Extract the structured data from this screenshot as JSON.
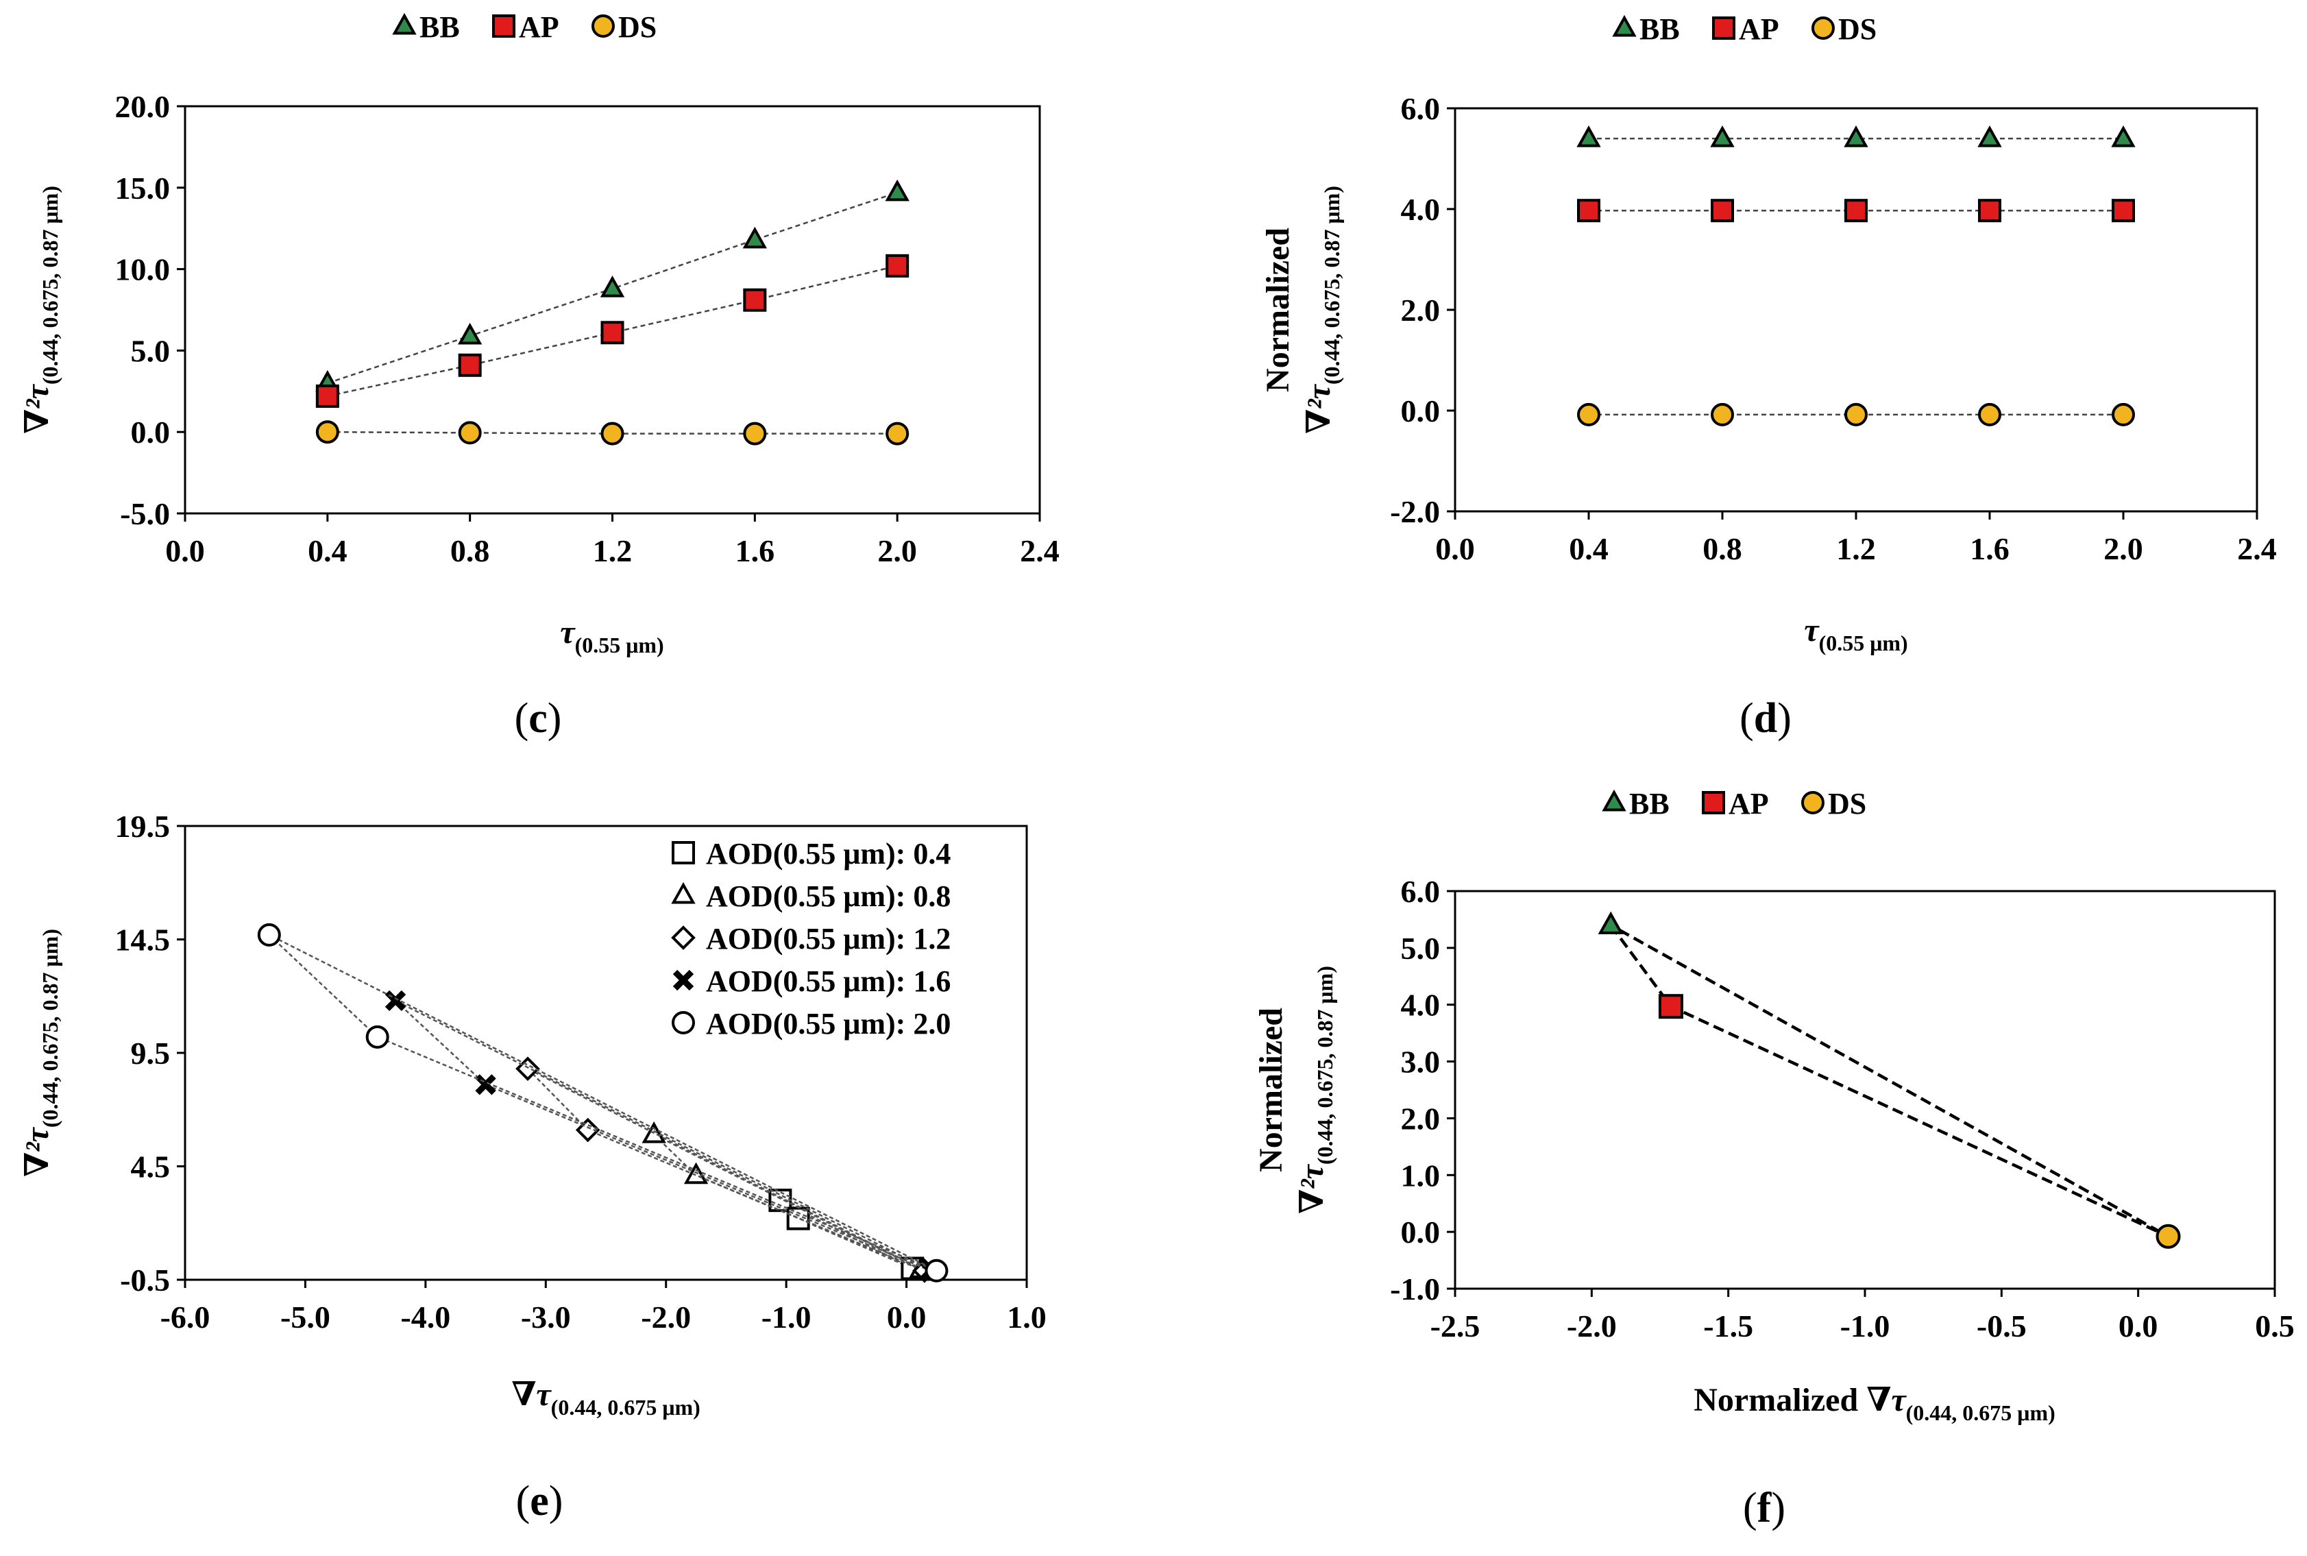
{
  "colors": {
    "BB": "#2e8b4a",
    "AP": "#e01b1b",
    "DS": "#f2b41e"
  },
  "chart_data": [
    {
      "id": "c",
      "type": "scatter",
      "panel_label": "c",
      "title": "",
      "legend": {
        "items": [
          "BB",
          "AP",
          "DS"
        ]
      },
      "ylabel": {
        "main": "∇²τ",
        "sub": "(0.44, 0.675, 0.87 μm)"
      },
      "xlabel": {
        "main": "τ",
        "sub": "(0.55 μm)"
      },
      "xlim": [
        0.0,
        2.4
      ],
      "ylim": [
        -5.0,
        20.0
      ],
      "xticks": [
        "0.0",
        "0.4",
        "0.8",
        "1.2",
        "1.6",
        "2.0",
        "2.4"
      ],
      "yticks": [
        "-5.0",
        "0.0",
        "5.0",
        "10.0",
        "15.0",
        "20.0"
      ],
      "x": [
        0.4,
        0.8,
        1.2,
        1.6,
        2.0
      ],
      "series": [
        {
          "name": "BB",
          "values": [
            3.0,
            5.9,
            8.8,
            11.8,
            14.7
          ]
        },
        {
          "name": "AP",
          "values": [
            2.2,
            4.1,
            6.1,
            8.1,
            10.2
          ]
        },
        {
          "name": "DS",
          "values": [
            0.0,
            -0.05,
            -0.1,
            -0.1,
            -0.1
          ]
        }
      ]
    },
    {
      "id": "d",
      "type": "scatter",
      "panel_label": "d",
      "title": "",
      "legend": {
        "items": [
          "BB",
          "AP",
          "DS"
        ]
      },
      "ylabel": {
        "pre": "Normalized",
        "main": "∇²τ",
        "sub": "(0.44, 0.675, 0.87 μm)"
      },
      "xlabel": {
        "main": "τ",
        "sub": "(0.55 μm)"
      },
      "xlim": [
        0.0,
        2.4
      ],
      "ylim": [
        -2.0,
        6.0
      ],
      "xticks": [
        "0.0",
        "0.4",
        "0.8",
        "1.2",
        "1.6",
        "2.0",
        "2.4"
      ],
      "yticks": [
        "-2.0",
        "0.0",
        "2.0",
        "4.0",
        "6.0"
      ],
      "x": [
        0.4,
        0.8,
        1.2,
        1.6,
        2.0
      ],
      "series": [
        {
          "name": "BB",
          "values": [
            5.4,
            5.4,
            5.4,
            5.4,
            5.4
          ]
        },
        {
          "name": "AP",
          "values": [
            3.97,
            3.97,
            3.97,
            3.97,
            3.97
          ]
        },
        {
          "name": "DS",
          "values": [
            -0.08,
            -0.08,
            -0.08,
            -0.08,
            -0.08
          ]
        }
      ]
    },
    {
      "id": "e",
      "type": "scatter",
      "panel_label": "e",
      "title": "",
      "legend": {
        "items": [
          "AOD(0.55 μm): 0.4",
          "AOD(0.55 μm): 0.8",
          "AOD(0.55 μm): 1.2",
          "AOD(0.55 μm): 1.6",
          "AOD(0.55 μm): 2.0"
        ]
      },
      "ylabel": {
        "main": "∇²τ",
        "sub": "(0.44, 0.675, 0.87 μm)"
      },
      "xlabel": {
        "main": "∇τ",
        "sub": "(0.44, 0.675 μm)"
      },
      "xlim": [
        -6.0,
        1.0
      ],
      "ylim": [
        -0.5,
        19.5
      ],
      "xticks": [
        "-6.0",
        "-5.0",
        "-4.0",
        "-3.0",
        "-2.0",
        "-1.0",
        "0.0",
        "1.0"
      ],
      "yticks": [
        "-0.5",
        "4.5",
        "9.5",
        "14.5",
        "19.5"
      ],
      "series": [
        {
          "name": "AOD(0.55 μm): 0.4",
          "marker": "square",
          "x": [
            -1.05,
            -0.9,
            0.05
          ],
          "y": [
            3.0,
            2.2,
            0.0
          ]
        },
        {
          "name": "AOD(0.55 μm): 0.8",
          "marker": "triangle",
          "x": [
            -2.1,
            -1.75,
            0.12
          ],
          "y": [
            5.9,
            4.1,
            -0.05
          ]
        },
        {
          "name": "AOD(0.55 μm): 1.2",
          "marker": "diamond",
          "x": [
            -3.15,
            -2.65,
            0.15
          ],
          "y": [
            8.8,
            6.1,
            -0.1
          ]
        },
        {
          "name": "AOD(0.55 μm): 1.6",
          "marker": "x",
          "x": [
            -4.25,
            -3.5,
            0.2
          ],
          "y": [
            11.8,
            8.1,
            -0.1
          ]
        },
        {
          "name": "AOD(0.55 μm): 2.0",
          "marker": "circle",
          "x": [
            -5.3,
            -4.4,
            0.25
          ],
          "y": [
            14.7,
            10.2,
            -0.1
          ]
        }
      ]
    },
    {
      "id": "f",
      "type": "scatter",
      "panel_label": "f",
      "title": "",
      "legend": {
        "items": [
          "BB",
          "AP",
          "DS"
        ]
      },
      "ylabel": {
        "pre": "Normalized",
        "main": "∇²τ",
        "sub": "(0.44, 0.675, 0.87 μm)"
      },
      "xlabel": {
        "pre": "Normalized ",
        "main": "∇τ",
        "sub": "(0.44, 0.675 μm)"
      },
      "xlim": [
        -2.5,
        0.5
      ],
      "ylim": [
        -1.0,
        6.0
      ],
      "xticks": [
        "-2.5",
        "-2.0",
        "-1.5",
        "-1.0",
        "-0.5",
        "0.0",
        "0.5"
      ],
      "yticks": [
        "-1.0",
        "0.0",
        "1.0",
        "2.0",
        "3.0",
        "4.0",
        "5.0",
        "6.0"
      ],
      "series": [
        {
          "name": "BB",
          "x": [
            -1.93
          ],
          "y": [
            5.4
          ]
        },
        {
          "name": "AP",
          "x": [
            -1.71
          ],
          "y": [
            3.97
          ]
        },
        {
          "name": "DS",
          "x": [
            0.11
          ],
          "y": [
            -0.08
          ]
        }
      ]
    }
  ]
}
